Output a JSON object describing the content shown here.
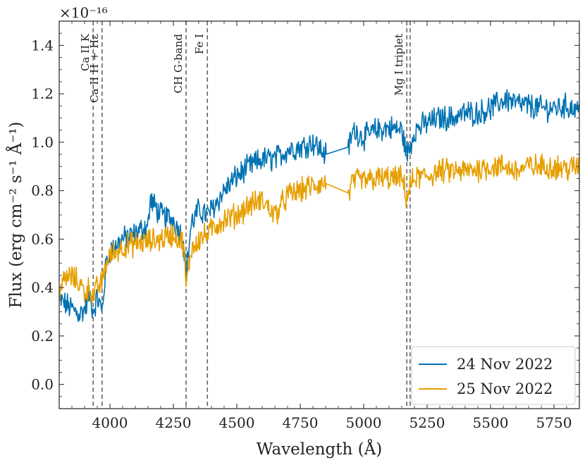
{
  "chart_data": {
    "type": "line",
    "xlabel": "Wavelength (Å)",
    "ylabel": "Flux (erg cm⁻² s⁻¹ Å⁻¹)",
    "y_multiplier": "×10⁻¹⁶",
    "xlim": [
      3800,
      5850
    ],
    "ylim": [
      -0.1,
      1.5
    ],
    "x_ticks": [
      4000,
      4250,
      4500,
      4750,
      5000,
      5250,
      5500,
      5750
    ],
    "y_ticks": [
      0.0,
      0.2,
      0.4,
      0.6,
      0.8,
      1.0,
      1.2,
      1.4
    ],
    "legend_position": "lower-right",
    "reference_lines": [
      {
        "label": "Ca II K",
        "x": 3934
      },
      {
        "label": "Ca II H + Hε",
        "x": 3969
      },
      {
        "label": "CH G-band",
        "x": 4300
      },
      {
        "label": "Fe I",
        "x": 4384
      },
      {
        "label": "Mg I triplet",
        "x": 5170
      },
      {
        "label": "",
        "x": 5183
      }
    ],
    "series": [
      {
        "name": "24 Nov 2022",
        "color": "#0072b2",
        "points": [
          [
            3800,
            0.35
          ],
          [
            3840,
            0.32
          ],
          [
            3880,
            0.29
          ],
          [
            3900,
            0.31
          ],
          [
            3920,
            0.37
          ],
          [
            3934,
            0.3
          ],
          [
            3950,
            0.36
          ],
          [
            3969,
            0.3
          ],
          [
            3985,
            0.5
          ],
          [
            4000,
            0.55
          ],
          [
            4050,
            0.6
          ],
          [
            4100,
            0.62
          ],
          [
            4150,
            0.66
          ],
          [
            4160,
            0.76
          ],
          [
            4200,
            0.7
          ],
          [
            4250,
            0.68
          ],
          [
            4290,
            0.6
          ],
          [
            4300,
            0.45
          ],
          [
            4320,
            0.66
          ],
          [
            4350,
            0.72
          ],
          [
            4384,
            0.7
          ],
          [
            4420,
            0.75
          ],
          [
            4450,
            0.8
          ],
          [
            4500,
            0.86
          ],
          [
            4550,
            0.9
          ],
          [
            4600,
            0.93
          ],
          [
            4650,
            0.93
          ],
          [
            4700,
            0.97
          ],
          [
            4750,
            0.98
          ],
          [
            4800,
            1.0
          ],
          [
            4850,
            0.95
          ],
          [
            4940,
            0.98
          ],
          [
            4960,
            1.05
          ],
          [
            5000,
            1.02
          ],
          [
            5050,
            1.05
          ],
          [
            5100,
            1.06
          ],
          [
            5150,
            1.05
          ],
          [
            5170,
            0.95
          ],
          [
            5183,
            0.98
          ],
          [
            5200,
            1.05
          ],
          [
            5250,
            1.08
          ],
          [
            5300,
            1.1
          ],
          [
            5350,
            1.1
          ],
          [
            5400,
            1.12
          ],
          [
            5450,
            1.12
          ],
          [
            5500,
            1.14
          ],
          [
            5560,
            1.18
          ],
          [
            5600,
            1.16
          ],
          [
            5650,
            1.15
          ],
          [
            5700,
            1.14
          ],
          [
            5750,
            1.14
          ],
          [
            5800,
            1.15
          ],
          [
            5850,
            1.13
          ]
        ]
      },
      {
        "name": "25 Nov 2022",
        "color": "#e69f00",
        "points": [
          [
            3800,
            0.4
          ],
          [
            3840,
            0.45
          ],
          [
            3880,
            0.42
          ],
          [
            3900,
            0.38
          ],
          [
            3920,
            0.4
          ],
          [
            3934,
            0.36
          ],
          [
            3950,
            0.4
          ],
          [
            3969,
            0.42
          ],
          [
            3985,
            0.5
          ],
          [
            4000,
            0.53
          ],
          [
            4050,
            0.57
          ],
          [
            4100,
            0.58
          ],
          [
            4150,
            0.59
          ],
          [
            4200,
            0.6
          ],
          [
            4250,
            0.62
          ],
          [
            4290,
            0.58
          ],
          [
            4300,
            0.4
          ],
          [
            4320,
            0.56
          ],
          [
            4350,
            0.6
          ],
          [
            4384,
            0.62
          ],
          [
            4420,
            0.66
          ],
          [
            4450,
            0.68
          ],
          [
            4500,
            0.7
          ],
          [
            4550,
            0.74
          ],
          [
            4600,
            0.76
          ],
          [
            4650,
            0.7
          ],
          [
            4700,
            0.78
          ],
          [
            4750,
            0.8
          ],
          [
            4800,
            0.82
          ],
          [
            4850,
            0.83
          ],
          [
            4940,
            0.79
          ],
          [
            4960,
            0.84
          ],
          [
            5000,
            0.84
          ],
          [
            5050,
            0.85
          ],
          [
            5100,
            0.85
          ],
          [
            5150,
            0.85
          ],
          [
            5170,
            0.77
          ],
          [
            5183,
            0.82
          ],
          [
            5200,
            0.85
          ],
          [
            5250,
            0.86
          ],
          [
            5300,
            0.88
          ],
          [
            5350,
            0.88
          ],
          [
            5400,
            0.88
          ],
          [
            5450,
            0.89
          ],
          [
            5500,
            0.9
          ],
          [
            5560,
            0.9
          ],
          [
            5600,
            0.88
          ],
          [
            5650,
            0.9
          ],
          [
            5700,
            0.9
          ],
          [
            5750,
            0.9
          ],
          [
            5800,
            0.89
          ],
          [
            5850,
            0.9
          ]
        ]
      }
    ]
  }
}
